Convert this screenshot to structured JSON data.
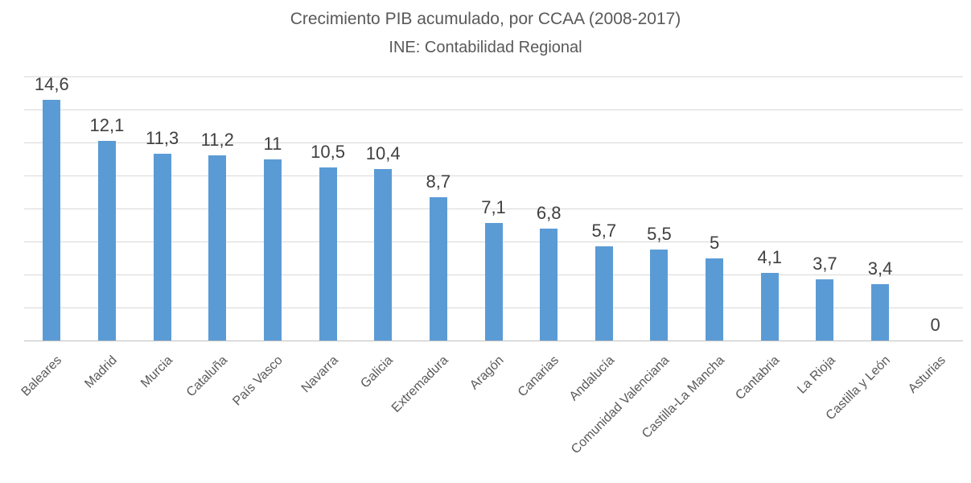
{
  "chart_data": {
    "type": "bar",
    "title": "Crecimiento PIB acumulado, por CCAA (2008-2017)",
    "subtitle": "INE: Contabilidad Regional",
    "categories": [
      "Baleares",
      "Madrid",
      "Murcia",
      "Cataluña",
      "País Vasco",
      "Navarra",
      "Galicia",
      "Extremadura",
      "Aragón",
      "Canarias",
      "Andalucía",
      "Comunidad Valenciana",
      "Castilla-La Mancha",
      "Cantabria",
      "La Rioja",
      "Castilla y León",
      "Asturias"
    ],
    "values": [
      14.6,
      12.1,
      11.3,
      11.2,
      11,
      10.5,
      10.4,
      8.7,
      7.1,
      6.8,
      5.7,
      5.5,
      5,
      4.1,
      3.7,
      3.4,
      0
    ],
    "value_labels": [
      "14,6",
      "12,1",
      "11,3",
      "11,2",
      "11",
      "10,5",
      "10,4",
      "8,7",
      "7,1",
      "6,8",
      "5,7",
      "5,5",
      "5",
      "4,1",
      "3,7",
      "3,4",
      "0"
    ],
    "xlabel": "",
    "ylabel": "",
    "ylim": [
      0,
      16
    ],
    "grid_step": 2,
    "grid": "horizontal",
    "legend": "none",
    "y_tick_labels_visible": false,
    "bar_color": "#5B9BD5",
    "value_label_color": "#404040",
    "axis_text_color": "#595959",
    "title_color": "#595959",
    "gridline_color": "#D9D9D9",
    "axis_line_color": "#BFBFBF",
    "background_color": "#FFFFFF"
  }
}
